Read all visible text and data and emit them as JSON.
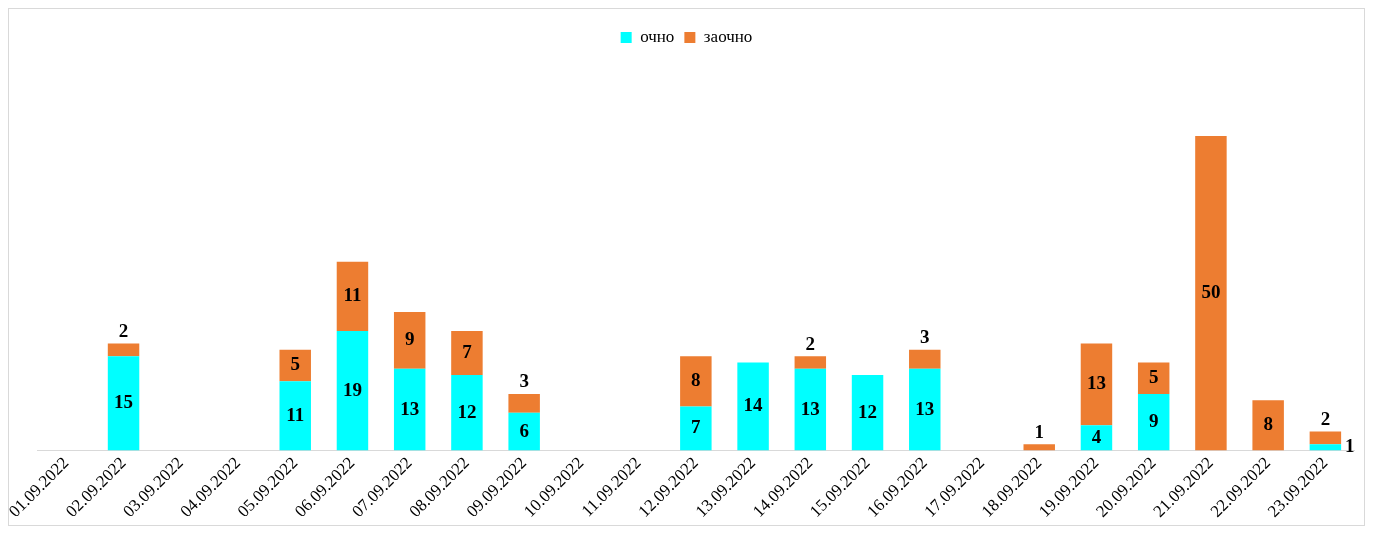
{
  "chart_data": {
    "type": "bar",
    "stacked": true,
    "legend": "top",
    "data_labels": true,
    "tick_labels": "x",
    "grid": false,
    "categories": [
      "01.09.2022",
      "02.09.2022",
      "03.09.2022",
      "04.09.2022",
      "05.09.2022",
      "06.09.2022",
      "07.09.2022",
      "08.09.2022",
      "09.09.2022",
      "10.09.2022",
      "11.09.2022",
      "12.09.2022",
      "13.09.2022",
      "14.09.2022",
      "15.09.2022",
      "16.09.2022",
      "17.09.2022",
      "18.09.2022",
      "19.09.2022",
      "20.09.2022",
      "21.09.2022",
      "22.09.2022",
      "23.09.2022"
    ],
    "series": [
      {
        "name": "очно",
        "color": "#00ffff",
        "values": [
          null,
          15,
          null,
          null,
          11,
          19,
          13,
          12,
          6,
          null,
          null,
          7,
          14,
          13,
          12,
          13,
          null,
          null,
          4,
          9,
          null,
          null,
          1
        ]
      },
      {
        "name": "заочно",
        "color": "#ed7d31",
        "values": [
          null,
          2,
          null,
          null,
          5,
          11,
          9,
          7,
          3,
          null,
          null,
          8,
          null,
          2,
          null,
          3,
          null,
          1,
          13,
          5,
          50,
          8,
          2
        ]
      }
    ]
  }
}
